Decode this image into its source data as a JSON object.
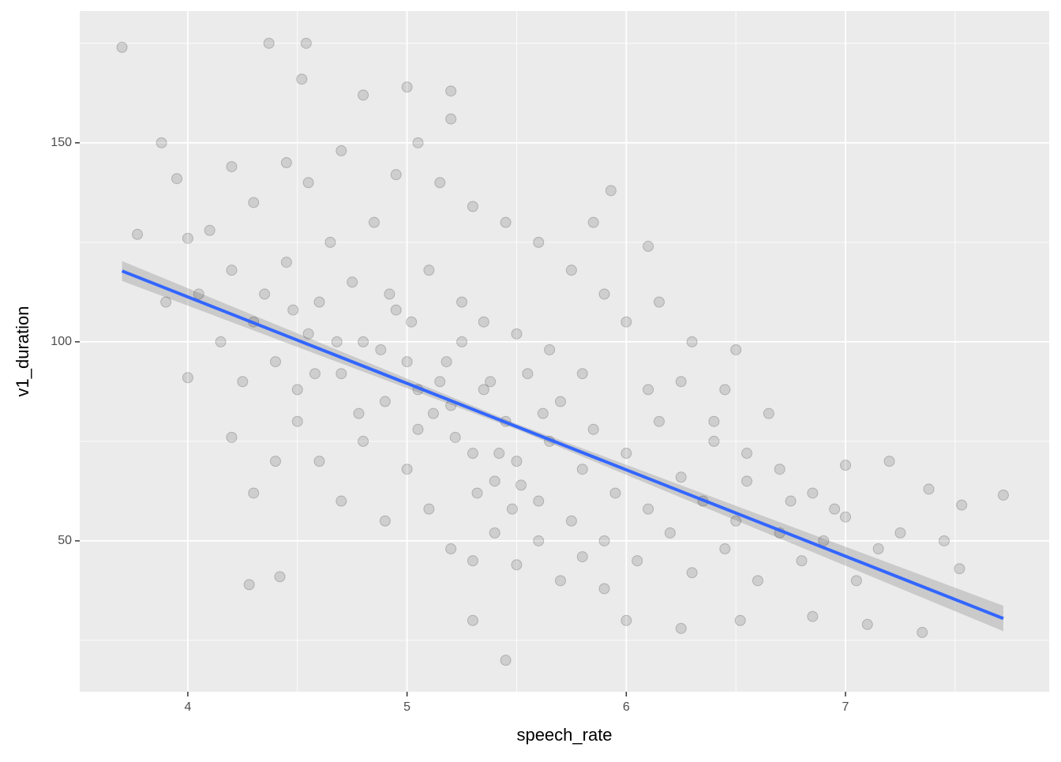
{
  "chart_data": {
    "type": "scatter",
    "x_label": "speech_rate",
    "y_label": "v1_duration",
    "xlim": [
      3.507,
      7.929
    ],
    "ylim": [
      12.1,
      183.1
    ],
    "xticks": [
      4,
      5,
      6,
      7
    ],
    "yticks": [
      50,
      100,
      150
    ],
    "minor_xticks": [
      4.5,
      5.5,
      6.5,
      7.5
    ],
    "minor_yticks": [
      25,
      75,
      125,
      175
    ],
    "grid": true,
    "point_color": "#000000",
    "x": [
      3.7,
      3.77,
      3.88,
      4.37,
      4.54,
      4.52,
      5.0,
      5.2,
      5.93,
      5.85,
      6.1,
      6.5,
      7.72,
      7.53,
      7.35,
      5.45,
      5.3,
      4.28,
      4.42,
      6.85,
      7.1,
      4.0,
      3.9,
      3.95,
      4.2,
      4.8,
      5.2,
      6.65,
      7.0,
      7.2,
      7.38,
      7.45,
      7.52,
      6.52,
      6.0,
      6.25,
      4.1,
      4.2,
      4.3,
      4.35,
      4.4,
      4.45,
      4.5,
      4.55,
      4.6,
      4.65,
      4.7,
      4.75,
      4.8,
      4.85,
      4.9,
      4.95,
      5.0,
      5.05,
      5.1,
      5.15,
      5.2,
      5.25,
      5.3,
      5.35,
      5.4,
      5.45,
      5.5,
      5.55,
      5.6,
      5.65,
      5.7,
      5.75,
      5.8,
      5.85,
      5.9,
      5.95,
      6.0,
      6.05,
      6.1,
      6.15,
      6.2,
      6.25,
      6.3,
      6.35,
      6.4,
      6.45,
      6.5,
      6.55,
      6.6,
      6.7,
      6.75,
      6.8,
      6.9,
      6.95,
      7.05,
      7.15,
      7.25,
      4.6,
      4.7,
      4.8,
      4.9,
      5.0,
      5.1,
      5.2,
      5.3,
      5.4,
      5.5,
      5.6,
      5.7,
      5.8,
      5.9,
      4.3,
      4.45,
      4.55,
      4.7,
      4.95,
      5.05,
      5.15,
      5.3,
      5.45,
      5.6,
      5.75,
      5.9,
      6.0,
      6.15,
      6.3,
      6.45,
      4.2,
      4.3,
      4.4,
      4.5,
      4.25,
      4.15,
      4.05,
      4.0,
      5.25,
      5.35,
      5.5,
      5.65,
      5.8,
      6.1,
      6.25,
      6.4,
      6.55,
      6.7,
      6.85,
      7.0,
      5.05,
      5.12,
      5.18,
      4.88,
      4.92,
      5.02,
      5.22,
      5.32,
      5.42,
      5.52,
      5.62,
      5.48,
      5.38,
      4.78,
      4.68,
      4.58,
      4.48
    ],
    "y": [
      174,
      127,
      150,
      175,
      175,
      166,
      164,
      163,
      138,
      130,
      124,
      98,
      61.5,
      59,
      27,
      20,
      30,
      39,
      41,
      31,
      29,
      91,
      110,
      141,
      144,
      162,
      156,
      82,
      69,
      70,
      63,
      50,
      43,
      30,
      30,
      28,
      128,
      118,
      105,
      112,
      95,
      120,
      88,
      102,
      110,
      125,
      92,
      115,
      100,
      130,
      85,
      108,
      95,
      78,
      118,
      90,
      84,
      100,
      72,
      88,
      65,
      80,
      70,
      92,
      60,
      75,
      85,
      55,
      68,
      78,
      50,
      62,
      72,
      45,
      58,
      80,
      52,
      66,
      42,
      60,
      75,
      48,
      55,
      65,
      40,
      52,
      60,
      45,
      50,
      58,
      40,
      48,
      52,
      70,
      60,
      75,
      55,
      68,
      58,
      48,
      45,
      52,
      44,
      50,
      40,
      46,
      38,
      135,
      145,
      140,
      148,
      142,
      150,
      140,
      134,
      130,
      125,
      118,
      112,
      105,
      110,
      100,
      88,
      76,
      62,
      70,
      80,
      90,
      100,
      112,
      126,
      110,
      105,
      102,
      98,
      92,
      88,
      90,
      80,
      72,
      68,
      62,
      56,
      88,
      82,
      95,
      98,
      112,
      105,
      76,
      62,
      72,
      64,
      82,
      58,
      90,
      82,
      100,
      92,
      108
    ],
    "fit": {
      "color": "#3366ff",
      "x": [
        3.7,
        5.5,
        7.72
      ],
      "y": [
        117.8,
        78.7,
        30.5
      ],
      "lower": [
        115.3,
        78.0,
        27.3
      ],
      "upper": [
        120.3,
        79.4,
        33.7
      ]
    }
  }
}
